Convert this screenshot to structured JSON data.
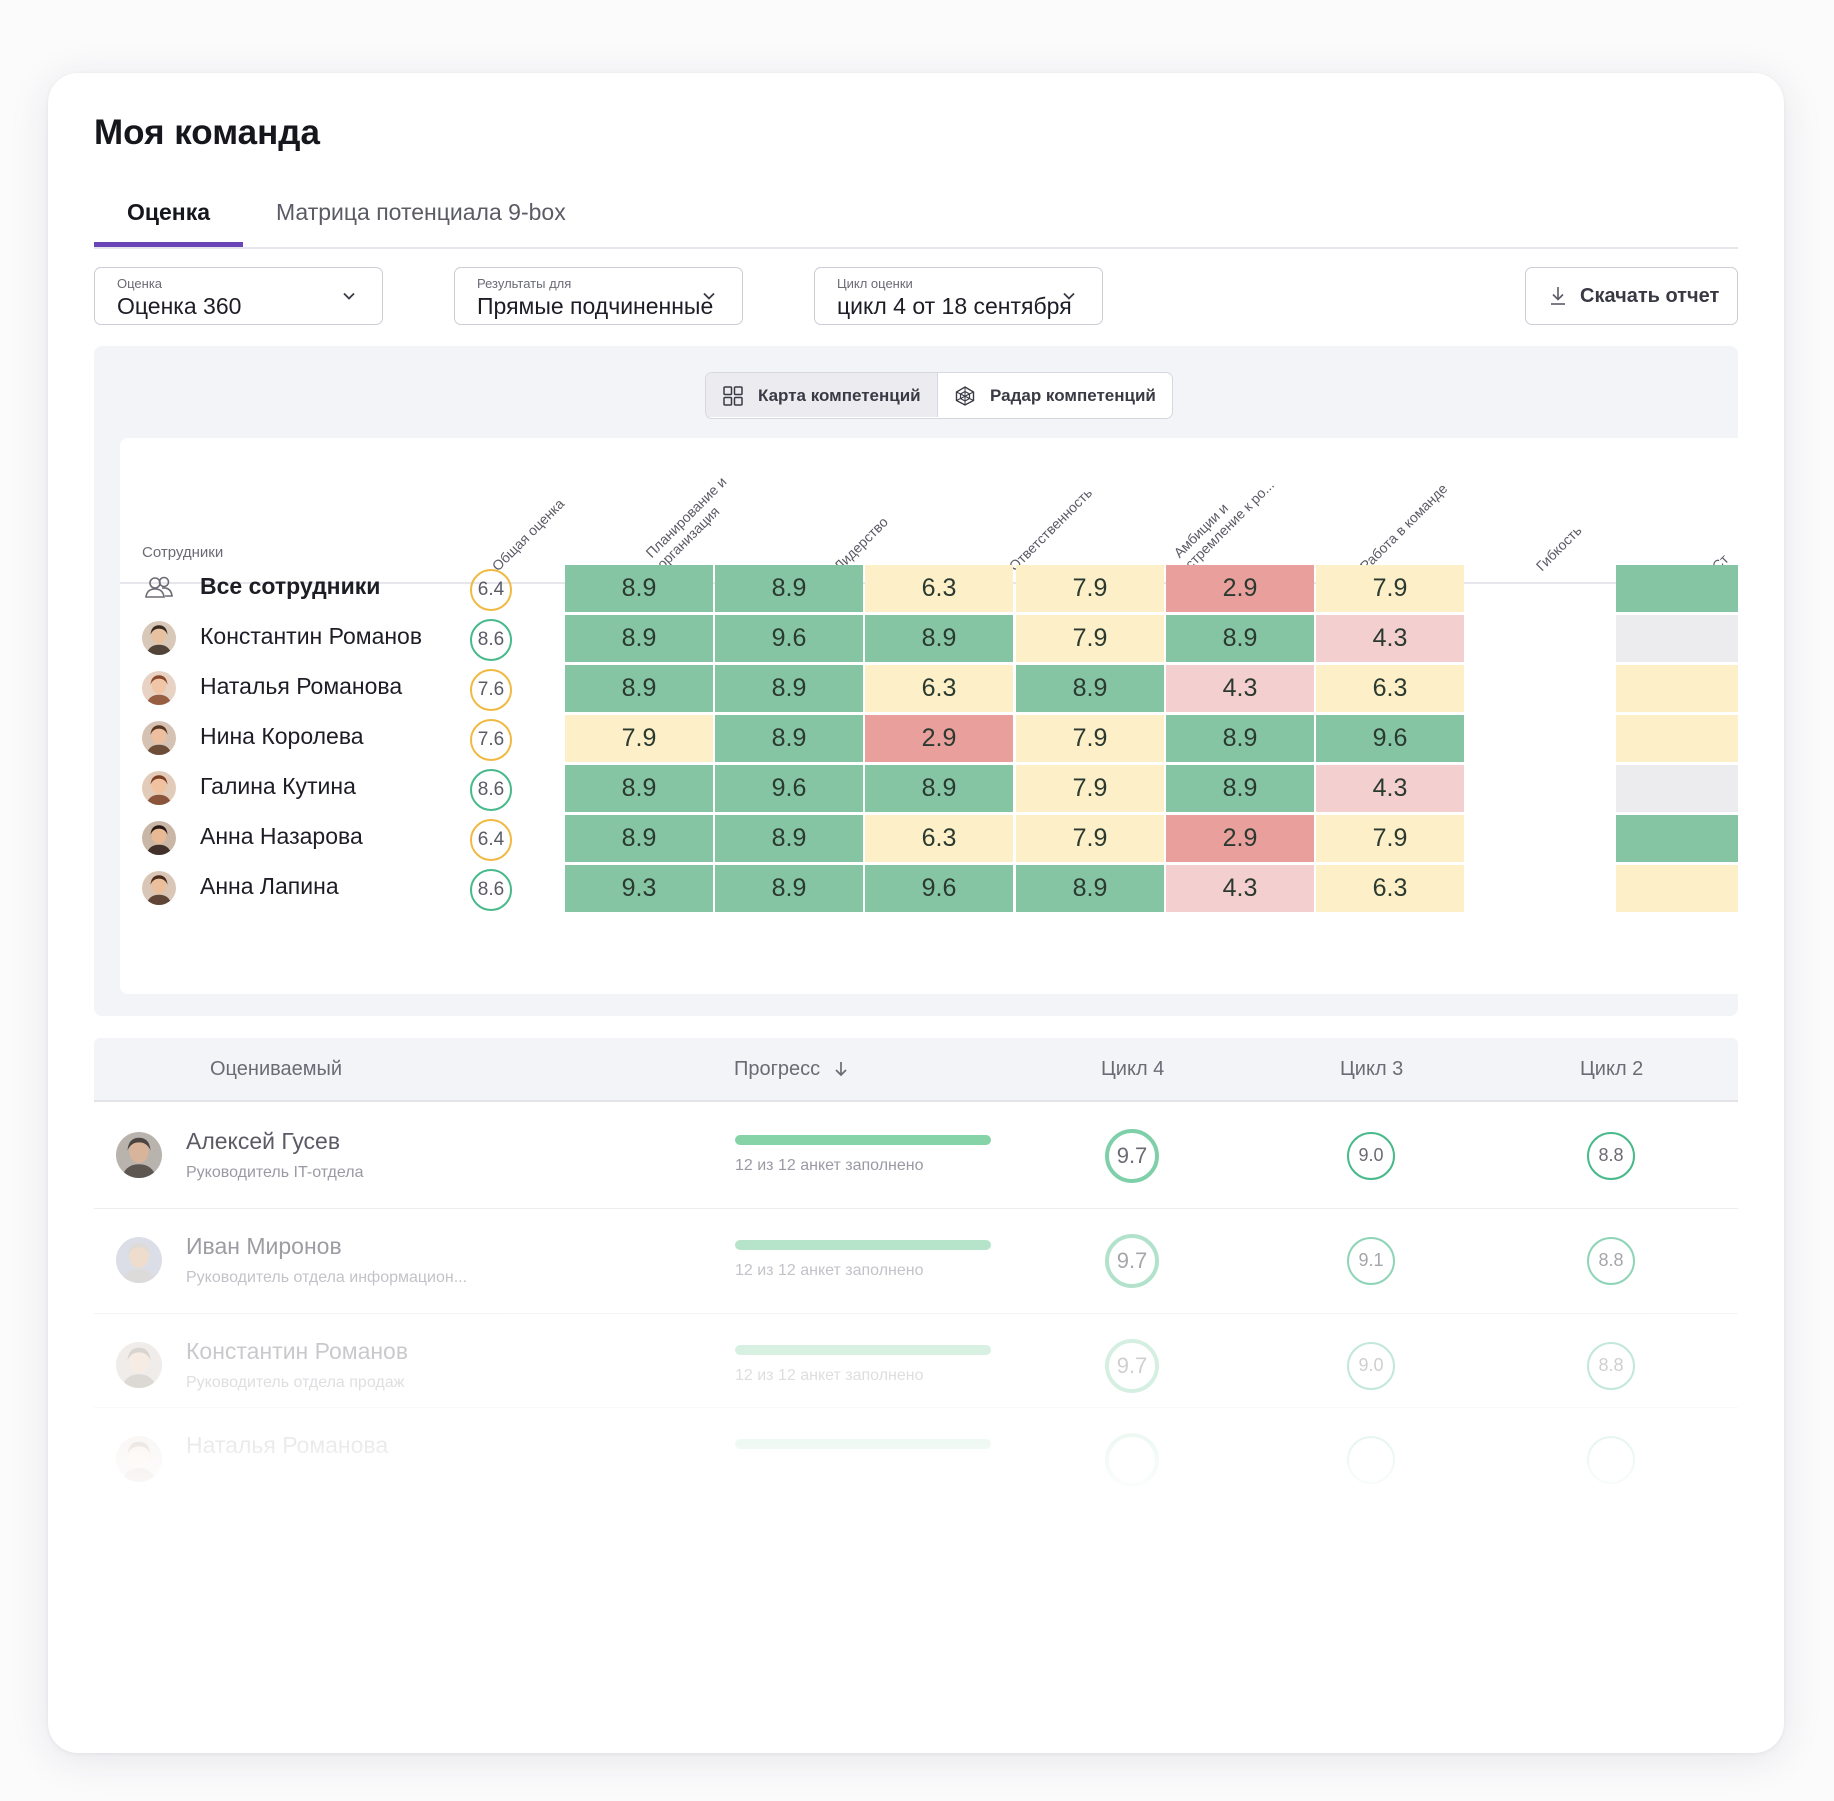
{
  "page": {
    "title": "Моя команда"
  },
  "tabs": [
    {
      "label": "Оценка"
    },
    {
      "label": "Матрица потенциала 9-box"
    }
  ],
  "filters": {
    "assessment": {
      "label": "Оценка",
      "value": "Оценка 360"
    },
    "results_for": {
      "label": "Результаты для",
      "value": "Прямые подчиненные"
    },
    "cycle": {
      "label": "Цикл оценки",
      "value": "цикл 4 от 18 сентября"
    }
  },
  "download_button": {
    "label": "Скачать отчет"
  },
  "view_toggle": {
    "competency_map": "Карта компетенций",
    "competency_radar": "Радар компетенций"
  },
  "heatmap": {
    "employees_header": "Сотрудники",
    "overall_header": "Общая оценка",
    "columns": [
      "Планирование и\nорганизация",
      "Лидерство",
      "Ответственность",
      "Амбиции и\nстремление к ро...",
      "Работа в команде",
      "Гибкость",
      "Ст"
    ],
    "rows": [
      {
        "name": "Все сотрудники",
        "overall": "6.4",
        "scores": [
          "8.9",
          "8.9",
          "6.3",
          "7.9",
          "2.9",
          "7.9"
        ]
      },
      {
        "name": "Константин Романов",
        "overall": "8.6",
        "scores": [
          "8.9",
          "9.6",
          "8.9",
          "7.9",
          "8.9",
          "4.3"
        ]
      },
      {
        "name": "Наталья  Романова",
        "overall": "7.6",
        "scores": [
          "8.9",
          "8.9",
          "6.3",
          "8.9",
          "4.3",
          "6.3"
        ]
      },
      {
        "name": "Нина  Королева",
        "overall": "7.6",
        "scores": [
          "7.9",
          "8.9",
          "2.9",
          "7.9",
          "8.9",
          "9.6"
        ]
      },
      {
        "name": "Галина  Кутина",
        "overall": "8.6",
        "scores": [
          "8.9",
          "9.6",
          "8.9",
          "7.9",
          "8.9",
          "4.3"
        ]
      },
      {
        "name": "Анна  Назарова",
        "overall": "6.4",
        "scores": [
          "8.9",
          "8.9",
          "6.3",
          "7.9",
          "2.9",
          "7.9"
        ]
      },
      {
        "name": "Анна  Лапина",
        "overall": "8.6",
        "scores": [
          "9.3",
          "8.9",
          "9.6",
          "8.9",
          "4.3",
          "6.3"
        ]
      }
    ]
  },
  "table": {
    "headers": {
      "person": "Оцениваемый",
      "progress": "Прогресс",
      "cycle4": "Цикл 4",
      "cycle3": "Цикл 3",
      "cycle2": "Цикл 2"
    },
    "rows": [
      {
        "name": "Алексей Гусев",
        "role": "Руководитель IT-отдела",
        "progress_text": "12 из 12 анкет заполнено",
        "progress": 1.0,
        "c4": "9.7",
        "c3": "9.0",
        "c2": "8.8"
      },
      {
        "name": "Иван Миронов",
        "role": "Руководитель отдела информацион...",
        "progress_text": "12 из 12 анкет заполнено",
        "progress": 1.0,
        "c4": "9.7",
        "c3": "9.1",
        "c2": "8.8"
      },
      {
        "name": "Константин Романов",
        "role": "Руководитель отдела продаж",
        "progress_text": "12 из 12 анкет заполнено",
        "progress": 1.0,
        "c4": "9.7",
        "c3": "9.0",
        "c2": "8.8"
      },
      {
        "name": "Наталья  Романова",
        "role": "",
        "progress_text": "",
        "progress": 1.0,
        "c4": "",
        "c3": "",
        "c2": ""
      }
    ]
  },
  "colors": {
    "accent": "#6a45b8",
    "green": "#86c5a4",
    "yellow": "#fdefc8",
    "pink": "#f4cfcf",
    "red": "#e9a09c",
    "gray": "#ececee",
    "ring_green": "#47b98a",
    "ring_yellow": "#f0b942"
  }
}
